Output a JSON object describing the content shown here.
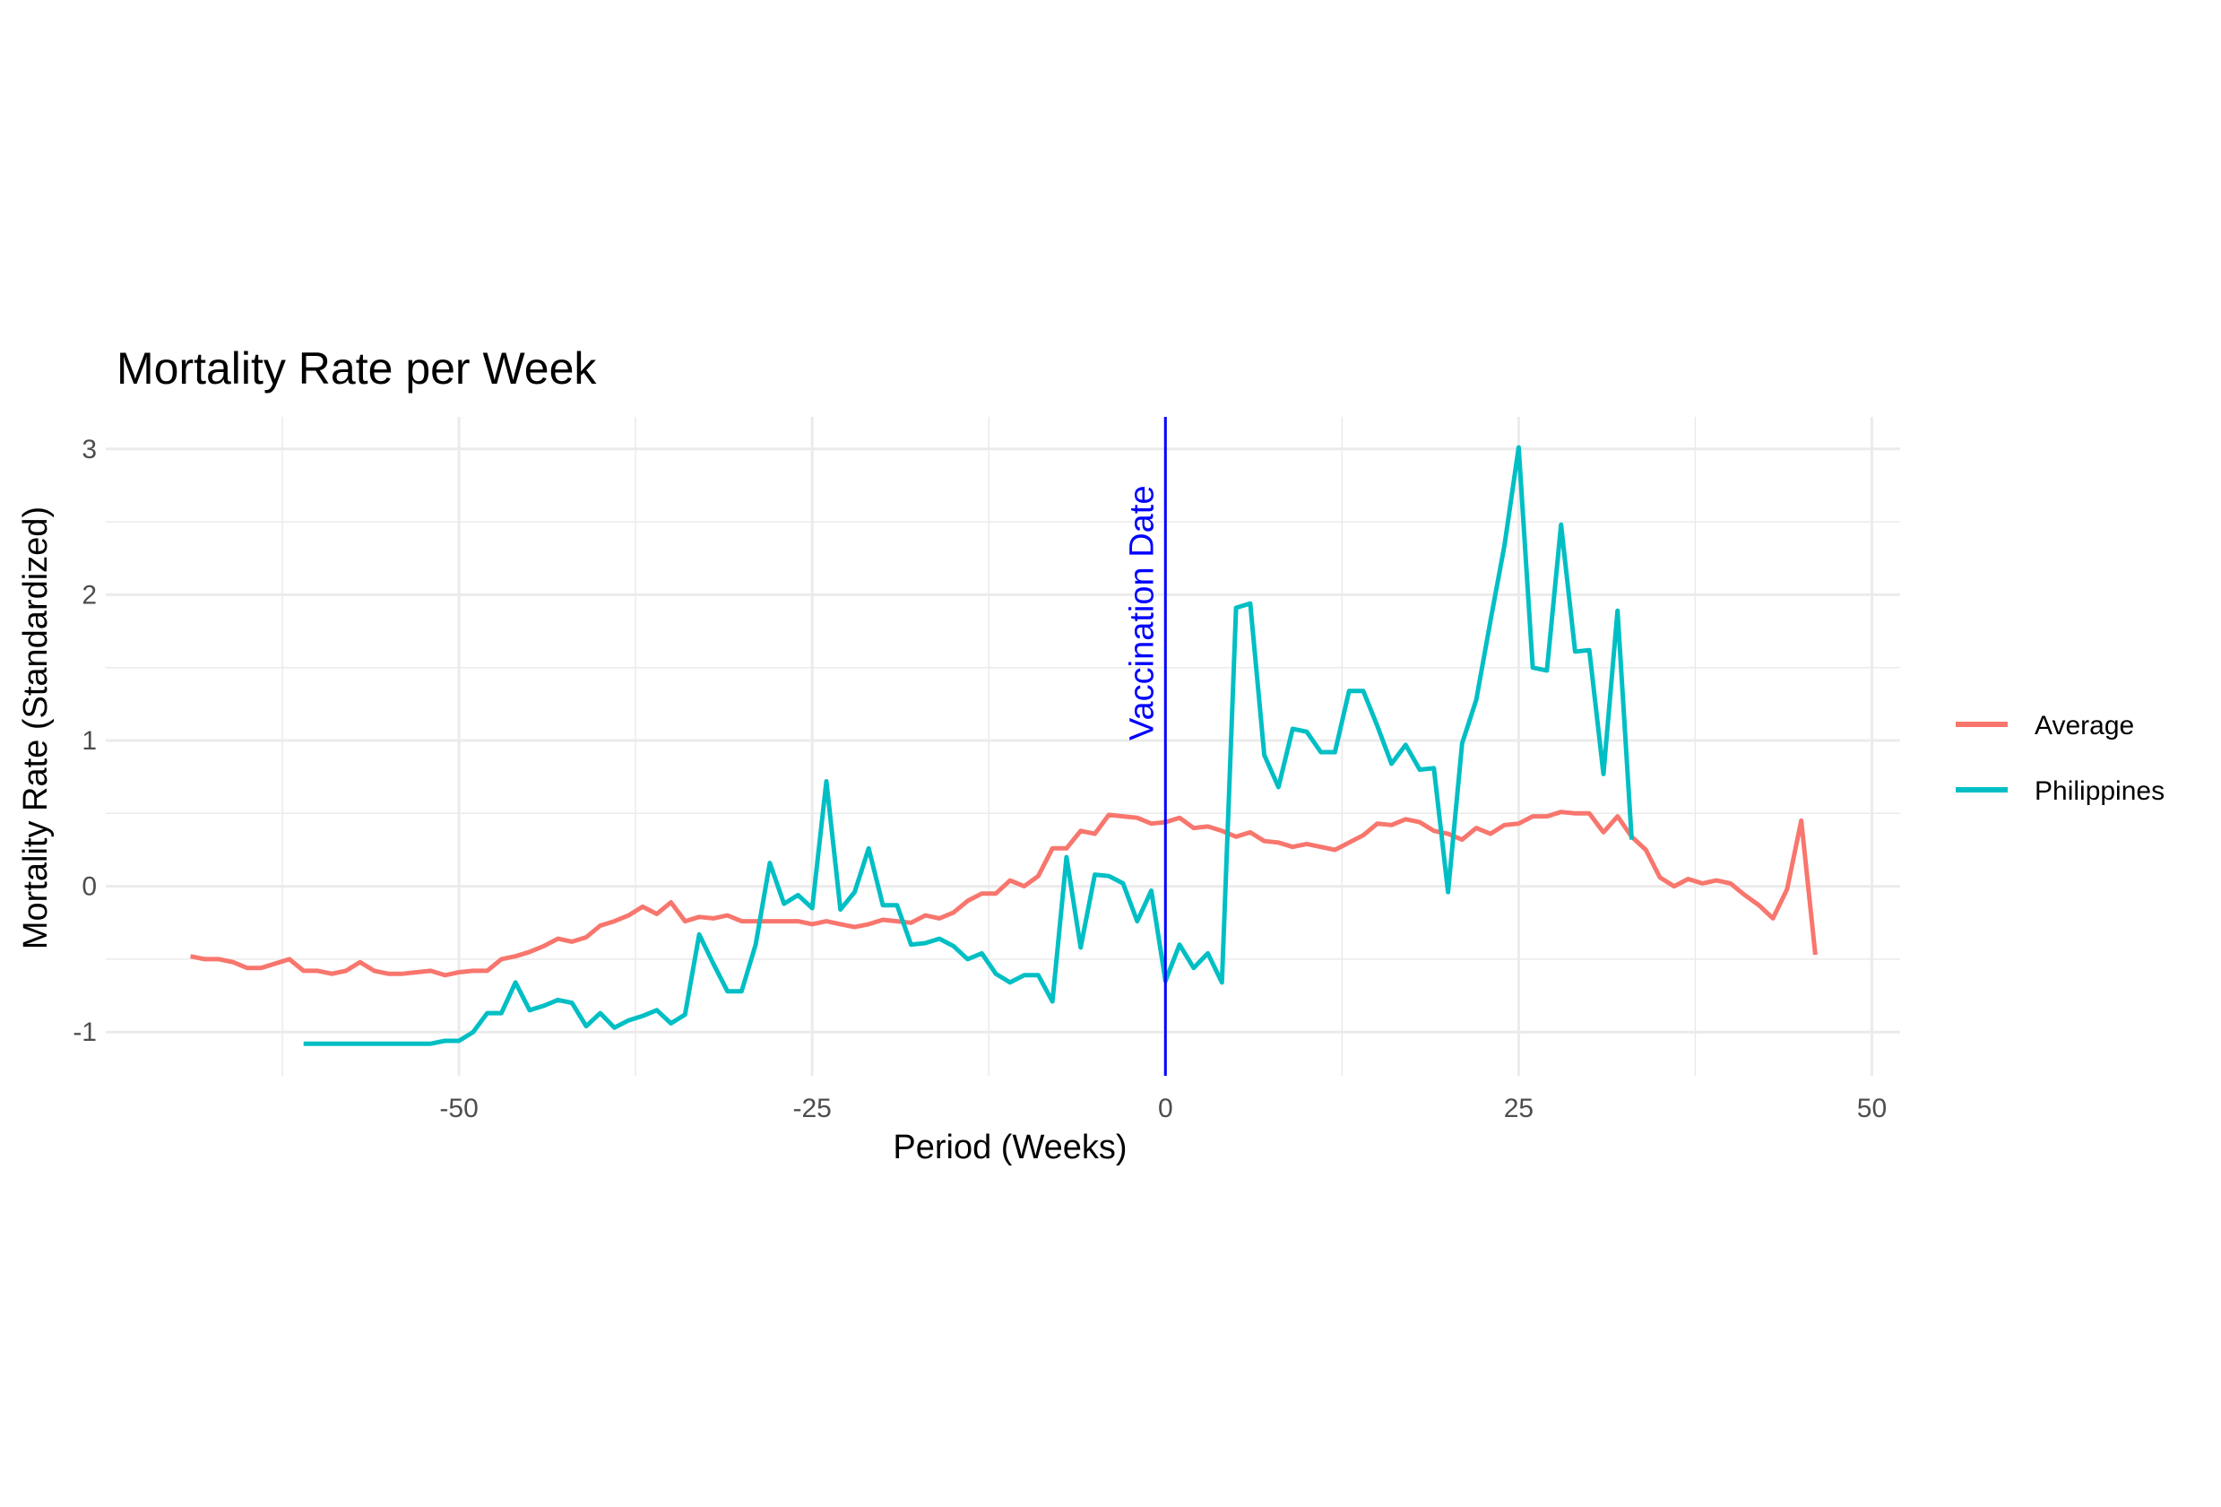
{
  "chart_data": {
    "type": "line",
    "title": "Mortality Rate per Week",
    "xlabel": "Period (Weeks)",
    "ylabel": "Mortality Rate (Standardized)",
    "xlim": [
      -75,
      52
    ],
    "ylim": [
      -1.3,
      3.22
    ],
    "x_ticks": [
      -50,
      -25,
      0,
      25,
      50
    ],
    "x_tick_labels": [
      "-50",
      "-25",
      "0",
      "25",
      "50"
    ],
    "y_ticks": [
      -1,
      0,
      1,
      2,
      3
    ],
    "y_tick_labels": [
      "-1",
      "0",
      "1",
      "2",
      "3"
    ],
    "grid": true,
    "legend_position": "right",
    "vline": {
      "x": 0,
      "label": "Vaccination Date",
      "color": "#0000ff"
    },
    "series": [
      {
        "name": "Average",
        "color": "#f8766d",
        "points": [
          [
            -69,
            -0.48
          ],
          [
            -68,
            -0.5
          ],
          [
            -67,
            -0.5
          ],
          [
            -66,
            -0.52
          ],
          [
            -65,
            -0.56
          ],
          [
            -64,
            -0.56
          ],
          [
            -63,
            -0.53
          ],
          [
            -62,
            -0.5
          ],
          [
            -61,
            -0.58
          ],
          [
            -60,
            -0.58
          ],
          [
            -59,
            -0.6
          ],
          [
            -58,
            -0.58
          ],
          [
            -57,
            -0.52
          ],
          [
            -56,
            -0.58
          ],
          [
            -55,
            -0.6
          ],
          [
            -54,
            -0.6
          ],
          [
            -53,
            -0.59
          ],
          [
            -52,
            -0.58
          ],
          [
            -51,
            -0.61
          ],
          [
            -50,
            -0.59
          ],
          [
            -49,
            -0.58
          ],
          [
            -48,
            -0.58
          ],
          [
            -47,
            -0.5
          ],
          [
            -46,
            -0.48
          ],
          [
            -45,
            -0.45
          ],
          [
            -44,
            -0.41
          ],
          [
            -43,
            -0.36
          ],
          [
            -42,
            -0.38
          ],
          [
            -41,
            -0.35
          ],
          [
            -40,
            -0.27
          ],
          [
            -39,
            -0.24
          ],
          [
            -38,
            -0.2
          ],
          [
            -37,
            -0.14
          ],
          [
            -36,
            -0.19
          ],
          [
            -35,
            -0.11
          ],
          [
            -34,
            -0.24
          ],
          [
            -33,
            -0.21
          ],
          [
            -32,
            -0.22
          ],
          [
            -31,
            -0.2
          ],
          [
            -30,
            -0.24
          ],
          [
            -29,
            -0.24
          ],
          [
            -28,
            -0.24
          ],
          [
            -27,
            -0.24
          ],
          [
            -26,
            -0.24
          ],
          [
            -25,
            -0.26
          ],
          [
            -24,
            -0.24
          ],
          [
            -23,
            -0.26
          ],
          [
            -22,
            -0.28
          ],
          [
            -21,
            -0.26
          ],
          [
            -20,
            -0.23
          ],
          [
            -19,
            -0.24
          ],
          [
            -18,
            -0.25
          ],
          [
            -17,
            -0.2
          ],
          [
            -16,
            -0.22
          ],
          [
            -15,
            -0.18
          ],
          [
            -14,
            -0.1
          ],
          [
            -13,
            -0.05
          ],
          [
            -12,
            -0.05
          ],
          [
            -11,
            0.04
          ],
          [
            -10,
            0.0
          ],
          [
            -9,
            0.07
          ],
          [
            -8,
            0.26
          ],
          [
            -7,
            0.26
          ],
          [
            -6,
            0.38
          ],
          [
            -5,
            0.36
          ],
          [
            -4,
            0.49
          ],
          [
            -3,
            0.48
          ],
          [
            -2,
            0.47
          ],
          [
            -1,
            0.43
          ],
          [
            0,
            0.44
          ],
          [
            1,
            0.47
          ],
          [
            2,
            0.4
          ],
          [
            3,
            0.41
          ],
          [
            4,
            0.38
          ],
          [
            5,
            0.34
          ],
          [
            6,
            0.37
          ],
          [
            7,
            0.31
          ],
          [
            8,
            0.3
          ],
          [
            9,
            0.27
          ],
          [
            10,
            0.29
          ],
          [
            11,
            0.27
          ],
          [
            12,
            0.25
          ],
          [
            13,
            0.3
          ],
          [
            14,
            0.35
          ],
          [
            15,
            0.43
          ],
          [
            16,
            0.42
          ],
          [
            17,
            0.46
          ],
          [
            18,
            0.44
          ],
          [
            19,
            0.38
          ],
          [
            20,
            0.36
          ],
          [
            21,
            0.32
          ],
          [
            22,
            0.4
          ],
          [
            23,
            0.36
          ],
          [
            24,
            0.42
          ],
          [
            25,
            0.43
          ],
          [
            26,
            0.48
          ],
          [
            27,
            0.48
          ],
          [
            28,
            0.51
          ],
          [
            29,
            0.5
          ],
          [
            30,
            0.5
          ],
          [
            31,
            0.37
          ],
          [
            32,
            0.48
          ],
          [
            33,
            0.34
          ],
          [
            34,
            0.25
          ],
          [
            35,
            0.06
          ],
          [
            36,
            0.0
          ],
          [
            37,
            0.05
          ],
          [
            38,
            0.02
          ],
          [
            39,
            0.04
          ],
          [
            40,
            0.02
          ],
          [
            41,
            -0.06
          ],
          [
            42,
            -0.13
          ],
          [
            43,
            -0.22
          ],
          [
            44,
            -0.02
          ],
          [
            45,
            0.45
          ],
          [
            46,
            -0.47
          ]
        ]
      },
      {
        "name": "Philippines",
        "color": "#00bfc4",
        "points": [
          [
            -61,
            -1.08
          ],
          [
            -60,
            -1.08
          ],
          [
            -59,
            -1.08
          ],
          [
            -58,
            -1.08
          ],
          [
            -57,
            -1.08
          ],
          [
            -56,
            -1.08
          ],
          [
            -55,
            -1.08
          ],
          [
            -54,
            -1.08
          ],
          [
            -53,
            -1.08
          ],
          [
            -52,
            -1.08
          ],
          [
            -51,
            -1.06
          ],
          [
            -50,
            -1.06
          ],
          [
            -49,
            -1.0
          ],
          [
            -48,
            -0.87
          ],
          [
            -47,
            -0.87
          ],
          [
            -46,
            -0.66
          ],
          [
            -45,
            -0.85
          ],
          [
            -44,
            -0.82
          ],
          [
            -43,
            -0.78
          ],
          [
            -42,
            -0.8
          ],
          [
            -41,
            -0.96
          ],
          [
            -40,
            -0.87
          ],
          [
            -39,
            -0.97
          ],
          [
            -38,
            -0.92
          ],
          [
            -37,
            -0.89
          ],
          [
            -36,
            -0.85
          ],
          [
            -35,
            -0.94
          ],
          [
            -34,
            -0.88
          ],
          [
            -33,
            -0.33
          ],
          [
            -32,
            -0.53
          ],
          [
            -31,
            -0.72
          ],
          [
            -30,
            -0.72
          ],
          [
            -29,
            -0.4
          ],
          [
            -28,
            0.16
          ],
          [
            -27,
            -0.12
          ],
          [
            -26,
            -0.06
          ],
          [
            -25,
            -0.15
          ],
          [
            -24,
            0.72
          ],
          [
            -23,
            -0.16
          ],
          [
            -22,
            -0.04
          ],
          [
            -21,
            0.26
          ],
          [
            -20,
            -0.13
          ],
          [
            -19,
            -0.13
          ],
          [
            -18,
            -0.4
          ],
          [
            -17,
            -0.39
          ],
          [
            -16,
            -0.36
          ],
          [
            -15,
            -0.41
          ],
          [
            -14,
            -0.5
          ],
          [
            -13,
            -0.46
          ],
          [
            -12,
            -0.6
          ],
          [
            -11,
            -0.66
          ],
          [
            -10,
            -0.61
          ],
          [
            -9,
            -0.61
          ],
          [
            -8,
            -0.79
          ],
          [
            -7,
            0.2
          ],
          [
            -6,
            -0.42
          ],
          [
            -5,
            0.08
          ],
          [
            -4,
            0.07
          ],
          [
            -3,
            0.02
          ],
          [
            -2,
            -0.24
          ],
          [
            -1,
            -0.03
          ],
          [
            0,
            -0.65
          ],
          [
            1,
            -0.4
          ],
          [
            2,
            -0.56
          ],
          [
            3,
            -0.46
          ],
          [
            4,
            -0.66
          ],
          [
            5,
            1.91
          ],
          [
            6,
            1.94
          ],
          [
            7,
            0.9
          ],
          [
            8,
            0.68
          ],
          [
            9,
            1.08
          ],
          [
            10,
            1.06
          ],
          [
            11,
            0.92
          ],
          [
            12,
            0.92
          ],
          [
            13,
            1.34
          ],
          [
            14,
            1.34
          ],
          [
            15,
            1.1
          ],
          [
            16,
            0.84
          ],
          [
            17,
            0.97
          ],
          [
            18,
            0.8
          ],
          [
            19,
            0.81
          ],
          [
            20,
            -0.04
          ],
          [
            21,
            0.98
          ],
          [
            22,
            1.28
          ],
          [
            23,
            1.82
          ],
          [
            24,
            2.34
          ],
          [
            25,
            3.01
          ],
          [
            26,
            1.5
          ],
          [
            27,
            1.48
          ],
          [
            28,
            2.48
          ],
          [
            29,
            1.61
          ],
          [
            30,
            1.62
          ],
          [
            31,
            0.77
          ],
          [
            32,
            1.89
          ],
          [
            33,
            0.32
          ]
        ]
      }
    ]
  }
}
